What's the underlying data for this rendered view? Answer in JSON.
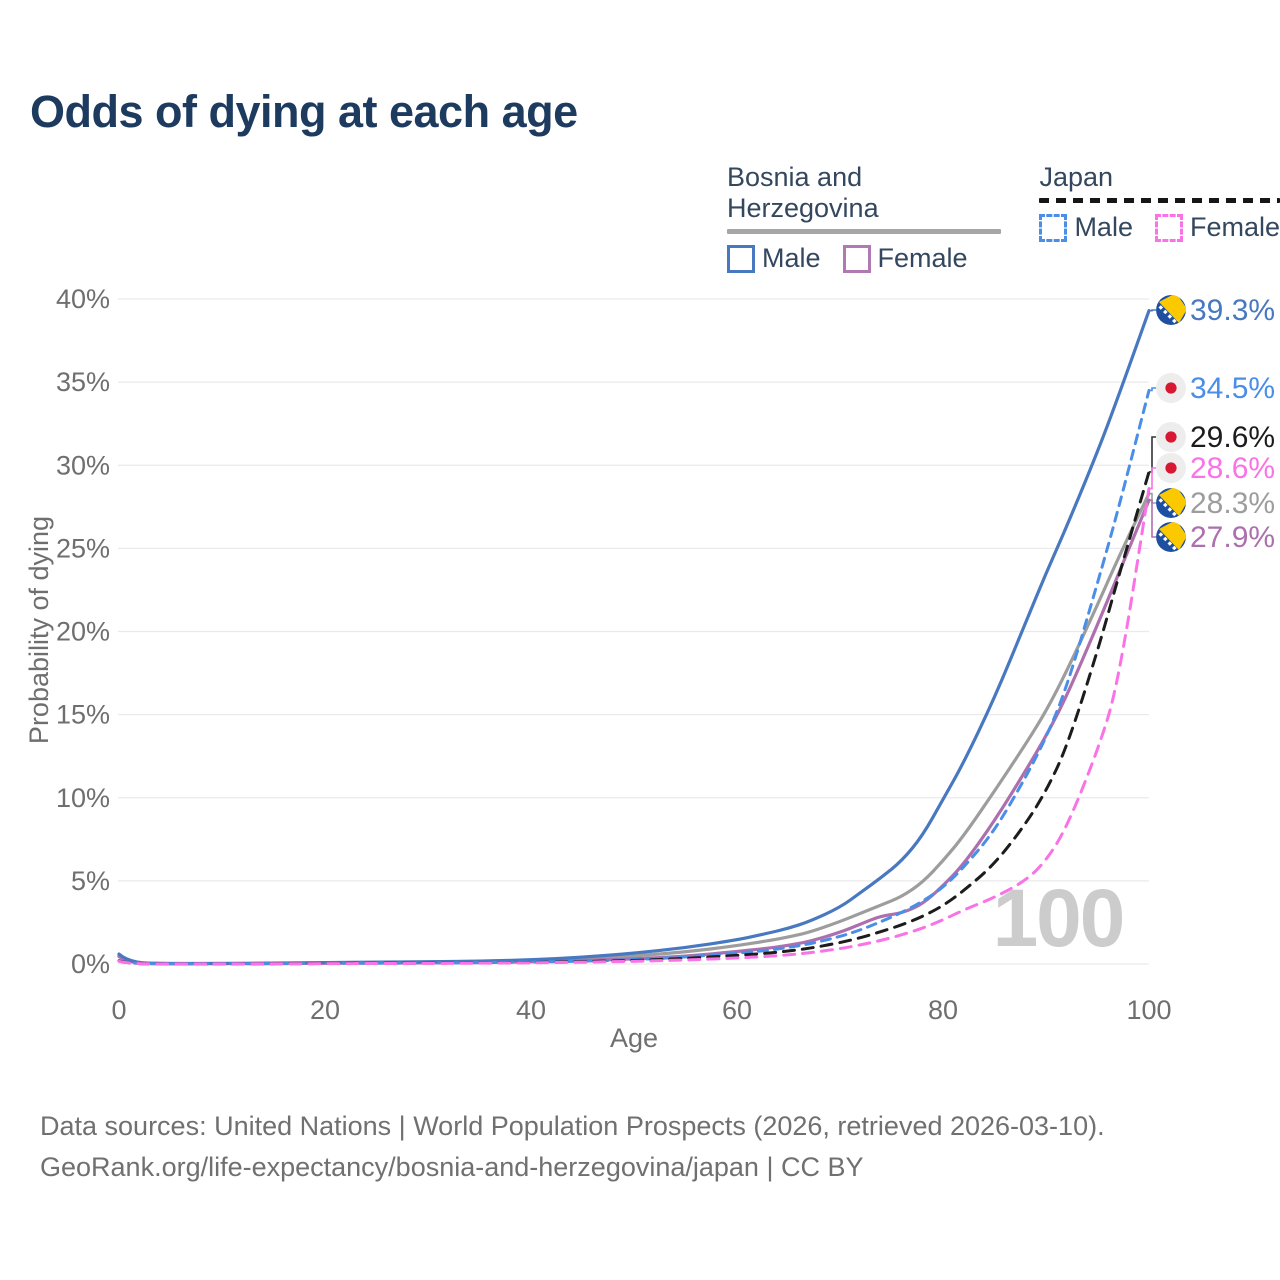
{
  "title": "Odds of dying at each age",
  "legend": {
    "groups": [
      {
        "id": "bosnia",
        "label": "Bosnia and Herzegovina",
        "line_color": "#a6a6a6",
        "line_style": "solid",
        "items": [
          {
            "id": "bosnia-male",
            "label": "Male",
            "color": "#4878c0",
            "style": "solid"
          },
          {
            "id": "bosnia-female",
            "label": "Female",
            "color": "#b179b1",
            "style": "solid"
          }
        ]
      },
      {
        "id": "japan",
        "label": "Japan",
        "line_color": "#161616",
        "line_style": "dashed",
        "items": [
          {
            "id": "japan-male",
            "label": "Male",
            "color": "#4a8ee8",
            "style": "dashed"
          },
          {
            "id": "japan-female",
            "label": "Female",
            "color": "#f973e6",
            "style": "dashed"
          }
        ]
      }
    ]
  },
  "chart_data": {
    "type": "line",
    "title": "Odds of dying at each age",
    "xlabel": "Age",
    "ylabel": "Probability of dying",
    "xlim": [
      0,
      100
    ],
    "ylim": [
      0,
      40
    ],
    "x_ticks": [
      0,
      20,
      40,
      60,
      80,
      100
    ],
    "y_ticks": [
      0,
      5,
      10,
      15,
      20,
      25,
      30,
      35,
      40
    ],
    "y_tick_suffix": "%",
    "grid": "horizontal-only",
    "legend_position": "top-right",
    "hover_age_watermark": "100",
    "ages": [
      0,
      1,
      5,
      10,
      15,
      20,
      25,
      30,
      35,
      40,
      45,
      50,
      55,
      60,
      63,
      65,
      67,
      70,
      72,
      74,
      76,
      78,
      80,
      82,
      85,
      88,
      90,
      92,
      95,
      97,
      100
    ],
    "series": [
      {
        "id": "bih-total",
        "country": "Bosnia and Herzegovina",
        "group": "All",
        "color": "#9d9d9d",
        "dash": "solid",
        "flag": "bosnia",
        "end_label": "28.3%",
        "values": [
          0.5,
          0.05,
          0.025,
          0.025,
          0.04,
          0.07,
          0.09,
          0.11,
          0.14,
          0.2,
          0.31,
          0.48,
          0.72,
          1.1,
          1.4,
          1.62,
          1.9,
          2.55,
          3.05,
          3.55,
          4.05,
          4.9,
          6.2,
          7.7,
          10.4,
          13.2,
          15.2,
          17.6,
          21.6,
          24.4,
          28.3
        ]
      },
      {
        "id": "bih-female",
        "country": "Bosnia and Herzegovina",
        "group": "Female",
        "color": "#ad6fad",
        "dash": "solid",
        "flag": "bosnia",
        "end_label": "27.9%",
        "values": [
          0.45,
          0.045,
          0.02,
          0.02,
          0.03,
          0.045,
          0.055,
          0.065,
          0.085,
          0.13,
          0.2,
          0.31,
          0.46,
          0.75,
          0.95,
          1.12,
          1.35,
          1.9,
          2.4,
          2.9,
          3.05,
          3.6,
          4.7,
          6.0,
          8.6,
          11.6,
          13.7,
          16.1,
          20.4,
          23.4,
          27.9
        ]
      },
      {
        "id": "bih-male",
        "country": "Bosnia and Herzegovina",
        "group": "Male",
        "color": "#4878c0",
        "dash": "solid",
        "flag": "bosnia",
        "end_label": "39.3%",
        "values": [
          0.6,
          0.06,
          0.03,
          0.03,
          0.05,
          0.09,
          0.11,
          0.13,
          0.17,
          0.25,
          0.4,
          0.65,
          0.98,
          1.45,
          1.85,
          2.15,
          2.55,
          3.4,
          4.3,
          5.2,
          6.2,
          7.7,
          9.9,
          12.1,
          16.0,
          20.5,
          23.5,
          26.3,
          30.8,
          34.1,
          39.3
        ]
      },
      {
        "id": "japan-male",
        "country": "Japan",
        "group": "Male",
        "color": "#4a8ee8",
        "dash": "dashed",
        "flag": "japan",
        "end_label": "34.5%",
        "values": [
          0.2,
          0.02,
          0.01,
          0.01,
          0.02,
          0.04,
          0.05,
          0.06,
          0.08,
          0.11,
          0.17,
          0.26,
          0.42,
          0.65,
          0.82,
          1.0,
          1.2,
          1.65,
          2.05,
          2.55,
          3.1,
          3.75,
          4.6,
          5.8,
          8.0,
          11.2,
          13.6,
          16.6,
          22.9,
          27.3,
          34.5
        ]
      },
      {
        "id": "japan-total",
        "country": "Japan",
        "group": "All",
        "color": "#1c1c1c",
        "dash": "dashed",
        "flag": "japan",
        "end_label": "29.6%",
        "values": [
          0.18,
          0.018,
          0.009,
          0.009,
          0.017,
          0.03,
          0.04,
          0.05,
          0.065,
          0.09,
          0.14,
          0.21,
          0.33,
          0.52,
          0.65,
          0.78,
          0.94,
          1.28,
          1.58,
          1.95,
          2.35,
          2.85,
          3.5,
          4.4,
          6.0,
          8.4,
          10.4,
          13.0,
          18.8,
          23.2,
          29.6
        ]
      },
      {
        "id": "japan-female",
        "country": "Japan",
        "group": "Female",
        "color": "#f973e6",
        "dash": "dashed",
        "flag": "japan",
        "end_label": "28.6%",
        "values": [
          0.16,
          0.016,
          0.008,
          0.008,
          0.014,
          0.02,
          0.03,
          0.035,
          0.05,
          0.07,
          0.11,
          0.16,
          0.24,
          0.36,
          0.46,
          0.55,
          0.67,
          0.92,
          1.15,
          1.42,
          1.75,
          2.15,
          2.65,
          3.25,
          4.0,
          5.0,
          6.2,
          8.2,
          12.8,
          16.8,
          28.6
        ]
      }
    ]
  },
  "footer": {
    "line1": "Data sources: United Nations | World Population Prospects (2026, retrieved 2026-03-10).",
    "line2": "GeoRank.org/life-expectancy/bosnia-and-herzegovina/japan | CC BY"
  }
}
